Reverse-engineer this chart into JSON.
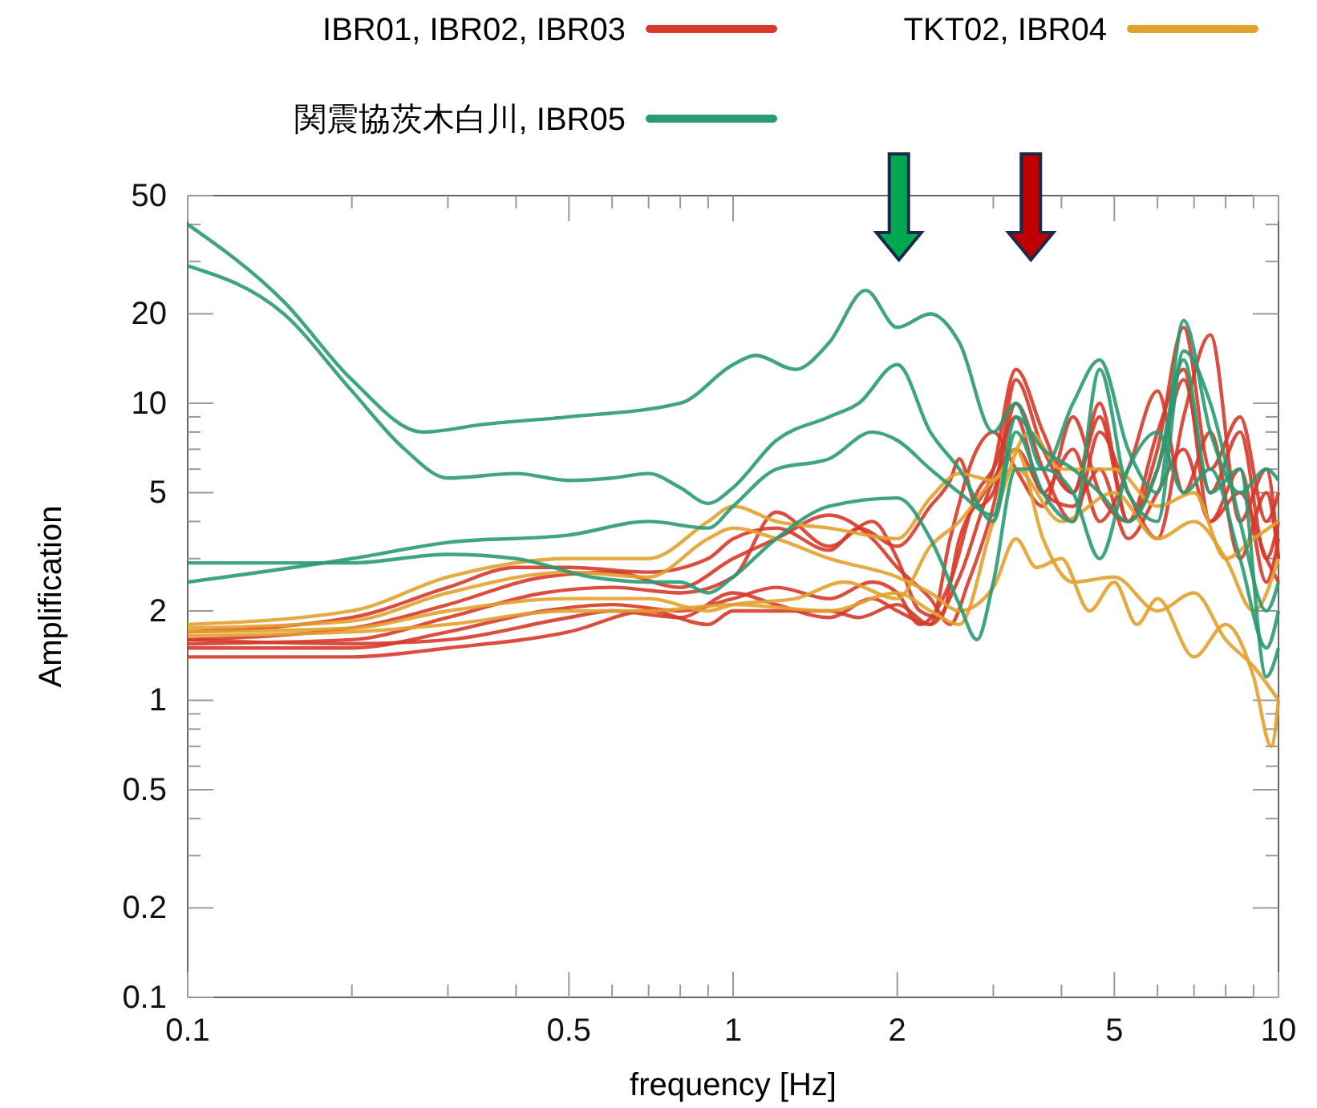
{
  "chart_data": {
    "type": "line",
    "xlabel": "frequency [Hz]",
    "ylabel": "Amplification",
    "log": "xy",
    "grid": false,
    "legend": "top",
    "line_style": "solid",
    "marker": "none",
    "xlim": [
      0.1,
      10
    ],
    "ylim": [
      0.1,
      50
    ],
    "xticks": [
      0.1,
      {
        "value": 0.2,
        "label": null
      },
      {
        "value": 0.3,
        "label": null
      },
      {
        "value": 0.4,
        "label": null
      },
      0.5,
      {
        "value": 0.6,
        "label": null
      },
      {
        "value": 0.7,
        "label": null
      },
      {
        "value": 0.8,
        "label": null
      },
      {
        "value": 0.9,
        "label": null
      },
      1,
      2,
      {
        "value": 3,
        "label": null
      },
      {
        "value": 4,
        "label": null
      },
      5,
      {
        "value": 6,
        "label": null
      },
      {
        "value": 7,
        "label": null
      },
      {
        "value": 8,
        "label": null
      },
      {
        "value": 9,
        "label": null
      },
      10
    ],
    "yticks": [
      0.1,
      0.2,
      {
        "value": 0.3,
        "label": null
      },
      {
        "value": 0.4,
        "label": null
      },
      0.5,
      {
        "value": 0.6,
        "label": null
      },
      {
        "value": 0.7,
        "label": null
      },
      {
        "value": 0.8,
        "label": null
      },
      {
        "value": 0.9,
        "label": null
      },
      1,
      2,
      {
        "value": 3,
        "label": null
      },
      {
        "value": 4,
        "label": null
      },
      5,
      {
        "value": 6,
        "label": null
      },
      {
        "value": 7,
        "label": null
      },
      {
        "value": 8,
        "label": null
      },
      {
        "value": 9,
        "label": null
      },
      10,
      20,
      {
        "value": 30,
        "label": null
      },
      {
        "value": 40,
        "label": null
      },
      50
    ],
    "series": [
      {
        "name": "IBR01, IBR02, IBR03",
        "color": "#d63a2a",
        "x": [
          0.1,
          0.2,
          0.3,
          0.4,
          0.5,
          0.7,
          0.9,
          1,
          1.2,
          1.5,
          1.7,
          2,
          2.3,
          2.5,
          2.6,
          2.8,
          3,
          3.3,
          3.7,
          4.2,
          4.7,
          5.3,
          6,
          6.7,
          7.5,
          8.5,
          9.5,
          10
        ],
        "values": [
          1.7,
          1.9,
          2.4,
          2.8,
          2.8,
          2.7,
          3,
          3.5,
          3.8,
          3.2,
          3.8,
          3.3,
          4.5,
          5.5,
          6.5,
          4.5,
          5,
          12,
          7,
          5,
          9,
          4,
          6,
          12,
          5,
          8,
          3,
          4
        ]
      },
      {
        "color": "#d63a2a",
        "x": [
          0.1,
          0.2,
          0.3,
          0.45,
          0.6,
          0.8,
          1,
          1.2,
          1.5,
          1.8,
          2,
          2.3,
          2.5,
          2.7,
          3,
          3.3,
          3.7,
          4.2,
          4.7,
          5.3,
          6,
          6.7,
          7.5,
          8.5,
          9.5,
          10
        ],
        "values": [
          1.6,
          1.75,
          2.1,
          2.6,
          2.7,
          2.4,
          3,
          3.5,
          4.2,
          3.5,
          2.8,
          2.2,
          1.8,
          2.5,
          4.5,
          10,
          6,
          4,
          8,
          5,
          3.5,
          9,
          17,
          4,
          6,
          3
        ]
      },
      {
        "color": "#d63a2a",
        "x": [
          0.1,
          0.2,
          0.3,
          0.45,
          0.6,
          0.8,
          1,
          1.2,
          1.5,
          1.8,
          2,
          2.2,
          2.4,
          2.6,
          3,
          3.3,
          3.7,
          4.2,
          4.7,
          5.3,
          6,
          6.7,
          7.5,
          8.5,
          9.5,
          10
        ],
        "values": [
          1.55,
          1.6,
          1.9,
          2.3,
          2.4,
          2.3,
          2.6,
          4.3,
          3.3,
          4,
          3,
          2,
          1.9,
          3.5,
          6,
          13,
          8,
          5,
          10,
          4,
          7,
          18,
          6,
          9,
          4,
          5
        ]
      },
      {
        "color": "#d63a2a",
        "x": [
          0.1,
          0.2,
          0.3,
          0.45,
          0.6,
          0.8,
          1,
          1.2,
          1.5,
          1.8,
          2,
          2.2,
          2.5,
          2.8,
          3,
          3.3,
          3.7,
          4.2,
          4.7,
          5.3,
          6,
          6.7,
          7.5,
          8.5,
          9.5,
          10
        ],
        "values": [
          1.5,
          1.5,
          1.7,
          2,
          2.1,
          2,
          2.2,
          2.4,
          2.2,
          2.5,
          2.3,
          1.8,
          2.5,
          5,
          6,
          9,
          5,
          7,
          4,
          6,
          11,
          5,
          8,
          3,
          5,
          3
        ]
      },
      {
        "color": "#d63a2a",
        "x": [
          0.1,
          0.2,
          0.3,
          0.5,
          0.6,
          0.8,
          1,
          1.2,
          1.5,
          1.8,
          2,
          2.3,
          2.6,
          3,
          3.3,
          3.7,
          4.2,
          4.7,
          5.3,
          6,
          6.7,
          7.5,
          8.5,
          9.5,
          10
        ],
        "values": [
          1.6,
          1.55,
          1.6,
          1.9,
          2,
          1.9,
          2.3,
          2.1,
          1.9,
          2.2,
          2,
          1.8,
          2.6,
          5.5,
          7,
          5,
          4.5,
          6,
          3.5,
          5,
          7,
          4,
          6,
          2.5,
          3.5
        ]
      },
      {
        "color": "#d63a2a",
        "x": [
          0.1,
          0.2,
          0.3,
          0.5,
          0.7,
          0.9,
          1,
          1.2,
          1.5,
          1.7,
          2,
          2.3,
          2.5,
          2.8,
          3,
          3.3,
          3.7,
          4.2,
          4.7,
          5.3,
          6,
          6.7,
          7.5,
          8.5,
          9.5,
          10
        ],
        "values": [
          1.4,
          1.4,
          1.5,
          1.7,
          2,
          1.8,
          2,
          2,
          2,
          1.9,
          2.1,
          1.8,
          3.5,
          7,
          8,
          6,
          4.5,
          9,
          5,
          4,
          8,
          13,
          4,
          5,
          3,
          2.5
        ]
      },
      {
        "name": "TKT02, IBR04",
        "color": "#e2a12e",
        "x": [
          0.1,
          0.2,
          0.3,
          0.5,
          0.7,
          0.9,
          1,
          1.2,
          1.5,
          2,
          2.3,
          2.6,
          3,
          3.3,
          3.7,
          4.2,
          5,
          6,
          7,
          8,
          9,
          10
        ],
        "values": [
          1.8,
          2,
          2.6,
          3,
          3,
          4,
          4.5,
          4,
          3.8,
          3.5,
          4.8,
          5.8,
          5.5,
          7,
          3.5,
          2.5,
          2.6,
          2,
          2.3,
          1.6,
          1.3,
          1
        ]
      },
      {
        "color": "#e2a12e",
        "x": [
          0.1,
          0.2,
          0.3,
          0.5,
          0.7,
          0.9,
          1,
          1.2,
          1.5,
          2,
          2.3,
          2.6,
          3,
          3.3,
          3.6,
          4,
          4.5,
          5,
          5.5,
          6,
          7,
          8,
          9,
          9.7,
          10
        ],
        "values": [
          1.75,
          1.85,
          2.3,
          2.7,
          2.6,
          3.5,
          3.8,
          3.5,
          3,
          2.6,
          2.3,
          2,
          2.4,
          3.5,
          2.8,
          3,
          2,
          2.5,
          1.8,
          2.2,
          1.4,
          1.8,
          1.2,
          0.7,
          1
        ]
      },
      {
        "color": "#e2a12e",
        "x": [
          0.1,
          0.2,
          0.3,
          0.5,
          0.7,
          0.9,
          1,
          1.3,
          1.6,
          2,
          2.3,
          2.6,
          3,
          3.3,
          4,
          5,
          6,
          7,
          8,
          9,
          10
        ],
        "values": [
          1.7,
          1.75,
          2,
          2.2,
          2.2,
          2,
          2.1,
          2.2,
          2.5,
          2.2,
          3.3,
          4,
          5.5,
          6,
          4,
          5,
          3.5,
          4,
          3,
          2,
          3
        ]
      },
      {
        "color": "#e2a12e",
        "x": [
          0.1,
          0.2,
          0.3,
          0.5,
          0.7,
          1,
          1.5,
          2,
          2.3,
          2.6,
          3,
          3.5,
          4,
          5,
          6,
          7,
          8,
          9,
          10
        ],
        "values": [
          1.65,
          1.7,
          1.8,
          2,
          2,
          2.1,
          2,
          2.3,
          2,
          1.8,
          4,
          8,
          6,
          6,
          4.5,
          5,
          3,
          3.5,
          4
        ]
      },
      {
        "name": "関震協茨木白川, IBR05",
        "color": "#2a9a72",
        "x": [
          0.1,
          0.15,
          0.2,
          0.27,
          0.35,
          0.5,
          0.8,
          1,
          1.1,
          1.3,
          1.5,
          1.75,
          2,
          2.3,
          2.6,
          3,
          3.3,
          3.7,
          4.2,
          4.7,
          5.3,
          6,
          6.7,
          7.5,
          8.5,
          9.5,
          10
        ],
        "values": [
          40,
          22,
          12,
          8,
          8.5,
          9,
          10,
          13.5,
          14.5,
          13,
          16,
          24,
          18,
          20,
          16,
          8,
          10,
          6,
          10,
          14,
          7,
          5,
          19,
          8,
          5,
          6,
          5.5
        ]
      },
      {
        "color": "#2a9a72",
        "x": [
          0.1,
          0.15,
          0.2,
          0.25,
          0.3,
          0.4,
          0.5,
          0.6,
          0.7,
          0.8,
          0.9,
          1,
          1.2,
          1.5,
          1.7,
          2,
          2.3,
          2.6,
          3,
          3.3,
          3.7,
          4.2,
          4.7,
          5.3,
          6,
          6.7,
          7.5,
          8.5,
          9.5,
          10
        ],
        "values": [
          29,
          20,
          11,
          7,
          5.6,
          5.8,
          5.5,
          5.6,
          5.8,
          5.2,
          4.6,
          5.2,
          7.5,
          9,
          10,
          13.5,
          8,
          6,
          4,
          8,
          5,
          4,
          13,
          5,
          4,
          15,
          10,
          4,
          2,
          2.5
        ]
      },
      {
        "color": "#2a9a72",
        "x": [
          0.1,
          0.2,
          0.3,
          0.4,
          0.55,
          0.7,
          0.8,
          0.9,
          1,
          1.2,
          1.5,
          2,
          2.3,
          2.6,
          2.8,
          3,
          3.3,
          3.7,
          4.2,
          4.7,
          5.3,
          6,
          6.7,
          7.5,
          8.5,
          9.5,
          10
        ],
        "values": [
          2.9,
          2.9,
          3.1,
          3,
          2.6,
          2.5,
          2.5,
          2.3,
          2.6,
          3.5,
          4.5,
          4.8,
          3.5,
          2.1,
          1.6,
          2.5,
          6,
          6,
          5,
          3,
          6,
          8,
          5,
          6,
          3,
          1.5,
          2
        ]
      },
      {
        "color": "#2a9a72",
        "x": [
          0.1,
          0.2,
          0.3,
          0.5,
          0.7,
          0.9,
          1,
          1.2,
          1.5,
          1.8,
          2,
          2.3,
          2.6,
          3,
          3.3,
          3.7,
          4.2,
          4.7,
          5.3,
          6,
          6.7,
          7.5,
          8.5,
          9.5,
          10
        ],
        "values": [
          2.5,
          3,
          3.4,
          3.6,
          4,
          3.8,
          4.5,
          6,
          6.5,
          8,
          7.5,
          6,
          5,
          4.2,
          9,
          7,
          6,
          5,
          4,
          6,
          14,
          5,
          6,
          1.2,
          1.5
        ]
      }
    ]
  }
}
